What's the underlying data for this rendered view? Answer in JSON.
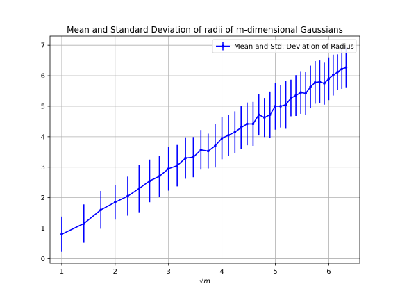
{
  "chart_data": {
    "type": "line",
    "title": "Mean and Standard Deviation of radii of m-dimensional Gaussians",
    "xlabel": "√m",
    "ylabel": "",
    "xlim": [
      0.78,
      6.58
    ],
    "ylim": [
      -0.15,
      7.3
    ],
    "xticks": [
      1,
      2,
      3,
      4,
      5,
      6
    ],
    "yticks": [
      0,
      1,
      2,
      3,
      4,
      5,
      6,
      7
    ],
    "grid": true,
    "legend": {
      "position": "top-right",
      "entries": [
        "Mean and Std. Deviation of Radius"
      ]
    },
    "series": [
      {
        "name": "Mean and Std. Deviation of Radius",
        "color": "#0000ff",
        "x": [
          1,
          1.414,
          1.732,
          2,
          2.236,
          2.449,
          2.646,
          2.828,
          3,
          3.162,
          3.317,
          3.464,
          3.606,
          3.742,
          3.873,
          4,
          4.123,
          4.243,
          4.359,
          4.472,
          4.583,
          4.69,
          4.796,
          4.899,
          5,
          5.099,
          5.196,
          5.292,
          5.385,
          5.477,
          5.568,
          5.657,
          5.745,
          5.831,
          5.916,
          6,
          6.083,
          6.164,
          6.245,
          6.325
        ],
        "y": [
          0.8,
          1.15,
          1.6,
          1.85,
          2.05,
          2.3,
          2.55,
          2.7,
          2.95,
          3.05,
          3.3,
          3.33,
          3.57,
          3.53,
          3.7,
          3.95,
          4.05,
          4.15,
          4.3,
          4.42,
          4.42,
          4.72,
          4.63,
          4.72,
          5.0,
          5.0,
          5.05,
          5.27,
          5.35,
          5.45,
          5.42,
          5.63,
          5.78,
          5.8,
          5.75,
          5.9,
          6.02,
          6.12,
          6.22,
          6.27
        ],
        "err": [
          0.58,
          0.63,
          0.62,
          0.57,
          0.64,
          0.78,
          0.7,
          0.67,
          0.72,
          0.68,
          0.68,
          0.66,
          0.65,
          0.57,
          0.71,
          0.69,
          0.67,
          0.68,
          0.7,
          0.7,
          0.72,
          0.68,
          0.64,
          0.76,
          0.77,
          0.7,
          0.79,
          0.6,
          0.67,
          0.7,
          0.7,
          0.7,
          0.7,
          0.7,
          0.7,
          0.7,
          0.67,
          0.58,
          0.65,
          0.65
        ]
      }
    ]
  }
}
